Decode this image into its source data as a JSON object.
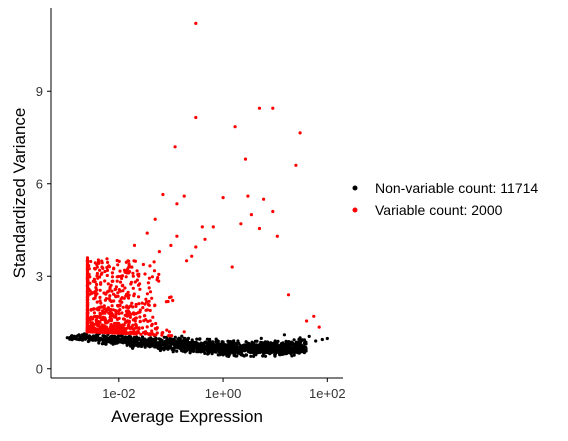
{
  "chart_data": {
    "type": "scatter",
    "title": "",
    "xlabel": "Average Expression",
    "ylabel": "Standardized Variance",
    "x_scale": "log10",
    "xlim": [
      0.0005,
      200
    ],
    "ylim": [
      -0.3,
      11.7
    ],
    "x_ticks": [
      {
        "value": 0.01,
        "label": "1e-02"
      },
      {
        "value": 1,
        "label": "1e+00"
      },
      {
        "value": 100,
        "label": "1e+02"
      }
    ],
    "y_ticks": [
      {
        "value": 0,
        "label": "0"
      },
      {
        "value": 3,
        "label": "3"
      },
      {
        "value": 6,
        "label": "6"
      },
      {
        "value": 9,
        "label": "9"
      }
    ],
    "grid": false,
    "legend_position": "right",
    "legend": [
      {
        "label": "Non-variable count: 11714",
        "color": "#000000"
      },
      {
        "label": "Variable count: 2000",
        "color": "#ff0000"
      }
    ],
    "series": [
      {
        "color": "#ff0000",
        "points": [
          [
            0.3,
            11.2
          ],
          [
            5.0,
            8.45
          ],
          [
            9.0,
            8.45
          ],
          [
            0.3,
            8.15
          ],
          [
            1.7,
            7.85
          ],
          [
            30,
            7.65
          ],
          [
            0.12,
            7.2
          ],
          [
            2.7,
            6.8
          ],
          [
            25,
            6.6
          ],
          [
            0.07,
            5.65
          ],
          [
            0.18,
            5.6
          ],
          [
            1.0,
            5.55
          ],
          [
            3.0,
            5.6
          ],
          [
            6.0,
            5.5
          ],
          [
            9.0,
            5.1
          ],
          [
            0.13,
            5.35
          ],
          [
            3.5,
            5.0
          ],
          [
            0.05,
            4.85
          ],
          [
            0.4,
            4.6
          ],
          [
            0.65,
            4.6
          ],
          [
            2.2,
            4.7
          ],
          [
            0.035,
            4.4
          ],
          [
            0.13,
            4.3
          ],
          [
            0.45,
            4.2
          ],
          [
            5.0,
            4.55
          ],
          [
            11,
            4.3
          ],
          [
            0.02,
            4.0
          ],
          [
            0.1,
            4.0
          ],
          [
            0.3,
            3.95
          ],
          [
            0.06,
            3.8
          ],
          [
            0.25,
            3.65
          ],
          [
            0.015,
            3.5
          ],
          [
            0.2,
            3.5
          ],
          [
            1.5,
            3.3
          ],
          [
            18,
            2.4
          ],
          [
            55,
            1.7
          ],
          [
            70,
            1.35
          ],
          [
            40,
            1.55
          ],
          [
            0.004,
            1.5
          ],
          [
            0.003,
            1.35
          ]
        ]
      },
      {
        "color": "#000000",
        "points": [
          [
            0.0015,
            1.0
          ],
          [
            0.002,
            0.98
          ],
          [
            0.0025,
            1.02
          ],
          [
            0.003,
            0.99
          ],
          [
            0.004,
            1.0
          ],
          [
            0.005,
            0.97
          ],
          [
            80,
            0.95
          ],
          [
            100,
            0.98
          ],
          [
            60,
            0.9
          ],
          [
            45,
            1.05
          ],
          [
            30,
            1.0
          ],
          [
            20,
            0.85
          ],
          [
            10,
            0.9
          ],
          [
            15,
            1.1
          ]
        ]
      }
    ]
  }
}
